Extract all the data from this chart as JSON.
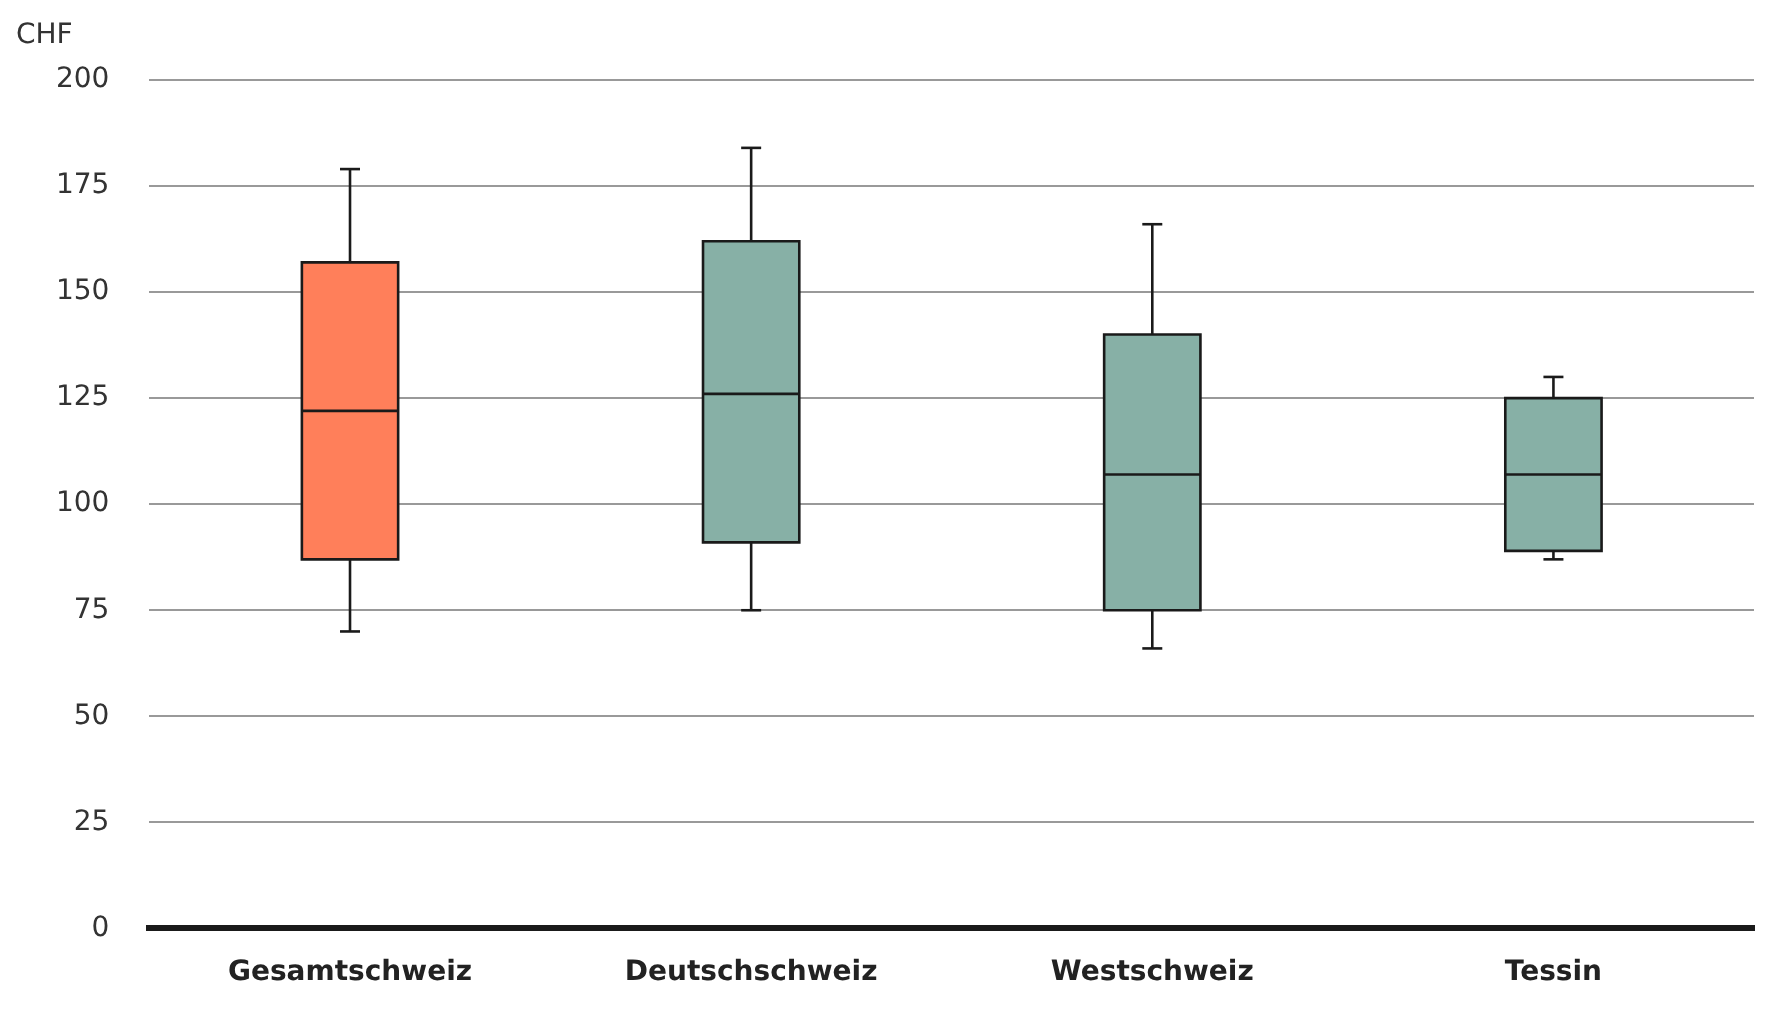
{
  "chart_data": {
    "type": "box",
    "ylabel": "CHF",
    "categories": [
      "Gesamtschweiz",
      "Deutschschweiz",
      "Westschweiz",
      "Tessin"
    ],
    "boxes": [
      {
        "low": 70,
        "q1": 87,
        "median": 122,
        "q3": 157,
        "high": 179
      },
      {
        "low": 75,
        "q1": 91,
        "median": 126,
        "q3": 162,
        "high": 184
      },
      {
        "low": 66,
        "q1": 75,
        "median": 107,
        "q3": 140,
        "high": 166
      },
      {
        "low": 87,
        "q1": 89,
        "median": 107,
        "q3": 125,
        "high": 130
      }
    ],
    "colors": [
      "#ff7f5a",
      "#87b0a6",
      "#87b0a6",
      "#87b0a6"
    ],
    "ylim": [
      0,
      200
    ],
    "yticks": [
      0,
      25,
      50,
      75,
      100,
      125,
      150,
      175,
      200
    ],
    "grid": "y"
  }
}
